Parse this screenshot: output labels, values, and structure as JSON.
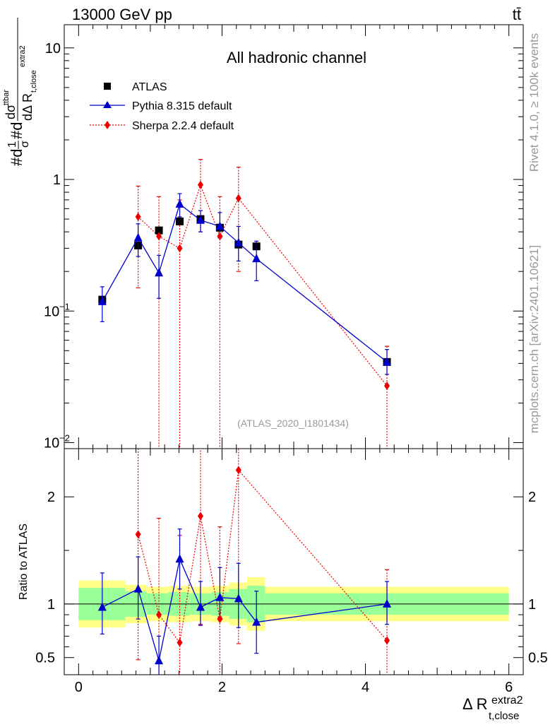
{
  "header": {
    "left": "13000 GeV pp",
    "right": "tt̄"
  },
  "side": {
    "rivet": "Rivet 4.1.0, ≥ 100k events",
    "mcplots": "mcplots.cern.ch [arXiv:2401.10621]"
  },
  "colors": {
    "data": "#000000",
    "pythia": "#0000cc",
    "sherpa": "#ee0000",
    "band_inner": "#99ff99",
    "band_outer": "#ffff88"
  },
  "chart_data": [
    {
      "type": "scatter",
      "title": "All hadronic channel",
      "analysis_tag": "(ATLAS_2020_I1801434)",
      "ylabel": "#d¹/σ#d dσ^{ttbar}/dΔR_{t,close}^{extra2}",
      "xlim": [
        -0.2,
        6.2
      ],
      "ylim": [
        0.009,
        15
      ],
      "yscale": "log",
      "yticks": [
        {
          "value": 10,
          "label": "10"
        },
        {
          "value": 1,
          "label": "1"
        },
        {
          "value": 0.1,
          "label": "10",
          "exp": "−1"
        },
        {
          "value": 0.01,
          "label": "10",
          "exp": "−2"
        }
      ],
      "legend": [
        "ATLAS",
        "Pythia 8.315 default",
        "Sherpa 2.2.4 default"
      ],
      "bins": [
        [
          0.0,
          0.65
        ],
        [
          0.65,
          0.95
        ],
        [
          0.95,
          1.25
        ],
        [
          1.25,
          1.55
        ],
        [
          1.55,
          1.85
        ],
        [
          1.85,
          2.1
        ],
        [
          2.1,
          2.35
        ],
        [
          2.35,
          2.6
        ],
        [
          2.6,
          6.0
        ]
      ],
      "series": [
        {
          "name": "ATLAS",
          "x": [
            0.33,
            0.83,
            1.12,
            1.41,
            1.7,
            1.97,
            2.23,
            2.48,
            4.3
          ],
          "y": [
            0.122,
            0.315,
            0.41,
            0.48,
            0.5,
            0.43,
            0.32,
            0.31,
            0.041
          ],
          "err_inner": [
            0.15,
            0.12,
            0.1,
            0.11,
            0.1,
            0.11,
            0.14,
            0.17,
            0.1
          ],
          "err_outer": [
            0.22,
            0.18,
            0.16,
            0.17,
            0.16,
            0.17,
            0.2,
            0.25,
            0.16
          ]
        },
        {
          "name": "Pythia 8.315 default",
          "x": [
            0.33,
            0.83,
            1.12,
            1.41,
            1.7,
            1.97,
            2.23,
            2.48,
            4.3
          ],
          "y": [
            0.118,
            0.36,
            0.195,
            0.65,
            0.49,
            0.44,
            0.33,
            0.25,
            0.041
          ],
          "yerr_low": [
            0.035,
            0.1,
            0.07,
            0.13,
            0.09,
            0.08,
            0.09,
            0.08,
            0.008
          ],
          "yerr_high": [
            0.035,
            0.1,
            0.07,
            0.13,
            0.09,
            0.12,
            0.11,
            0.09,
            0.01
          ]
        },
        {
          "name": "Sherpa 2.2.4 default",
          "x": [
            0.83,
            1.12,
            1.41,
            1.7,
            1.97,
            2.23,
            4.3
          ],
          "y": [
            0.52,
            0.37,
            0.3,
            0.91,
            0.37,
            0.72,
            0.027
          ],
          "yerr_low": [
            0.37,
            0.37,
            0.3,
            0.51,
            0.37,
            0.52,
            0.027
          ],
          "yerr_high": [
            0.37,
            0.37,
            0.4,
            0.51,
            0.37,
            0.52,
            0.027
          ]
        }
      ]
    },
    {
      "type": "scatter",
      "ylabel": "Ratio to ATLAS",
      "xlabel_main": "Δ R",
      "xlabel_sup": "extra2",
      "xlabel_sub": "t,close",
      "xlim": [
        -0.2,
        6.2
      ],
      "ylim": [
        0.34,
        2.45
      ],
      "xticks": [
        0,
        2,
        4,
        6
      ],
      "yticks": [
        {
          "value": 0.5,
          "label": "0.5"
        },
        {
          "value": 1,
          "label": "1"
        },
        {
          "value": 2,
          "label": "2"
        }
      ],
      "series": [
        {
          "name": "Pythia 8.315 default",
          "x": [
            0.33,
            0.83,
            1.12,
            1.41,
            1.7,
            1.97,
            2.23,
            2.48,
            4.3
          ],
          "y": [
            0.97,
            1.14,
            0.47,
            1.42,
            0.97,
            1.06,
            1.05,
            0.83,
            1.0
          ],
          "yerr_low": [
            0.25,
            0.28,
            0.22,
            0.28,
            0.17,
            0.18,
            0.27,
            0.29,
            0.19
          ],
          "yerr_high": [
            0.32,
            0.3,
            0.23,
            0.28,
            0.24,
            0.28,
            0.33,
            0.29,
            0.21
          ]
        },
        {
          "name": "Sherpa 2.2.4 default",
          "x": [
            0.83,
            1.12,
            1.41,
            1.7,
            1.97,
            2.23,
            4.3
          ],
          "y": [
            1.65,
            0.9,
            0.64,
            1.82,
            0.86,
            2.25,
            0.66
          ],
          "yerr_low": [
            1.17,
            0.9,
            0.64,
            1.01,
            0.86,
            1.62,
            0.66
          ],
          "yerr_high": [
            1.17,
            0.9,
            1.0,
            1.01,
            0.86,
            1.62,
            0.66
          ]
        }
      ]
    }
  ]
}
